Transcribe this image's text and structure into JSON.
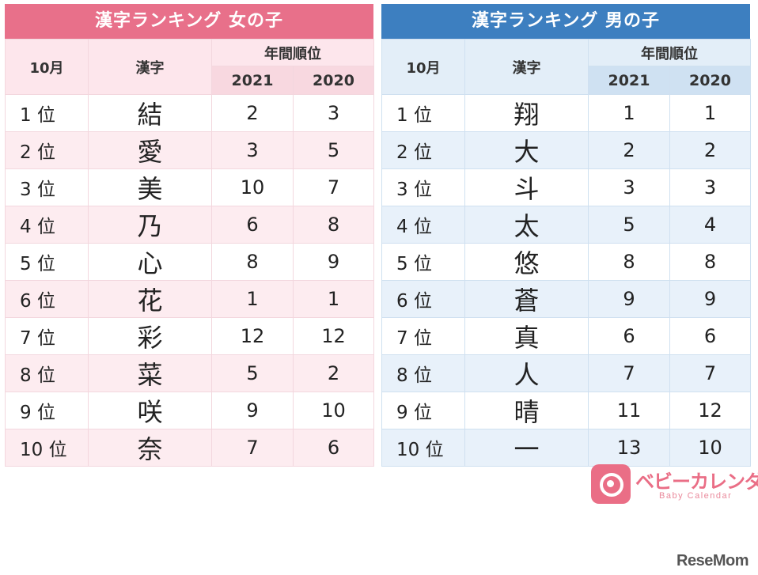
{
  "girls": {
    "title": "漢字ランキング 女の子",
    "col_month": "10月",
    "col_kanji": "漢字",
    "col_annual": "年間順位",
    "col_y1": "2021",
    "col_y2": "2020",
    "rows": [
      {
        "rank": "1 位",
        "kanji": "結",
        "y2021": "2",
        "y2020": "3"
      },
      {
        "rank": "2 位",
        "kanji": "愛",
        "y2021": "3",
        "y2020": "5"
      },
      {
        "rank": "3 位",
        "kanji": "美",
        "y2021": "10",
        "y2020": "7"
      },
      {
        "rank": "4 位",
        "kanji": "乃",
        "y2021": "6",
        "y2020": "8"
      },
      {
        "rank": "5 位",
        "kanji": "心",
        "y2021": "8",
        "y2020": "9"
      },
      {
        "rank": "6 位",
        "kanji": "花",
        "y2021": "1",
        "y2020": "1"
      },
      {
        "rank": "7 位",
        "kanji": "彩",
        "y2021": "12",
        "y2020": "12"
      },
      {
        "rank": "8 位",
        "kanji": "菜",
        "y2021": "5",
        "y2020": "2"
      },
      {
        "rank": "9 位",
        "kanji": "咲",
        "y2021": "9",
        "y2020": "10"
      },
      {
        "rank": "10 位",
        "kanji": "奈",
        "y2021": "7",
        "y2020": "6"
      }
    ]
  },
  "boys": {
    "title": "漢字ランキング 男の子",
    "col_month": "10月",
    "col_kanji": "漢字",
    "col_annual": "年間順位",
    "col_y1": "2021",
    "col_y2": "2020",
    "rows": [
      {
        "rank": "1 位",
        "kanji": "翔",
        "y2021": "1",
        "y2020": "1"
      },
      {
        "rank": "2 位",
        "kanji": "大",
        "y2021": "2",
        "y2020": "2"
      },
      {
        "rank": "3 位",
        "kanji": "斗",
        "y2021": "3",
        "y2020": "3"
      },
      {
        "rank": "4 位",
        "kanji": "太",
        "y2021": "5",
        "y2020": "4"
      },
      {
        "rank": "5 位",
        "kanji": "悠",
        "y2021": "8",
        "y2020": "8"
      },
      {
        "rank": "6 位",
        "kanji": "蒼",
        "y2021": "9",
        "y2020": "9"
      },
      {
        "rank": "7 位",
        "kanji": "真",
        "y2021": "6",
        "y2020": "6"
      },
      {
        "rank": "8 位",
        "kanji": "人",
        "y2021": "7",
        "y2020": "7"
      },
      {
        "rank": "9 位",
        "kanji": "晴",
        "y2021": "11",
        "y2020": "12"
      },
      {
        "rank": "10 位",
        "kanji": "一",
        "y2021": "13",
        "y2020": "10"
      }
    ]
  },
  "logo": {
    "icon": "baby-calendar-logo-icon",
    "name": "ベビーカレンダー",
    "subtitle": "Baby Calendar"
  },
  "watermark": "ReseMom",
  "colors": {
    "girls_accent": "#e8708a",
    "boys_accent": "#3d7fc0",
    "logo_pink": "#ea6e86"
  }
}
